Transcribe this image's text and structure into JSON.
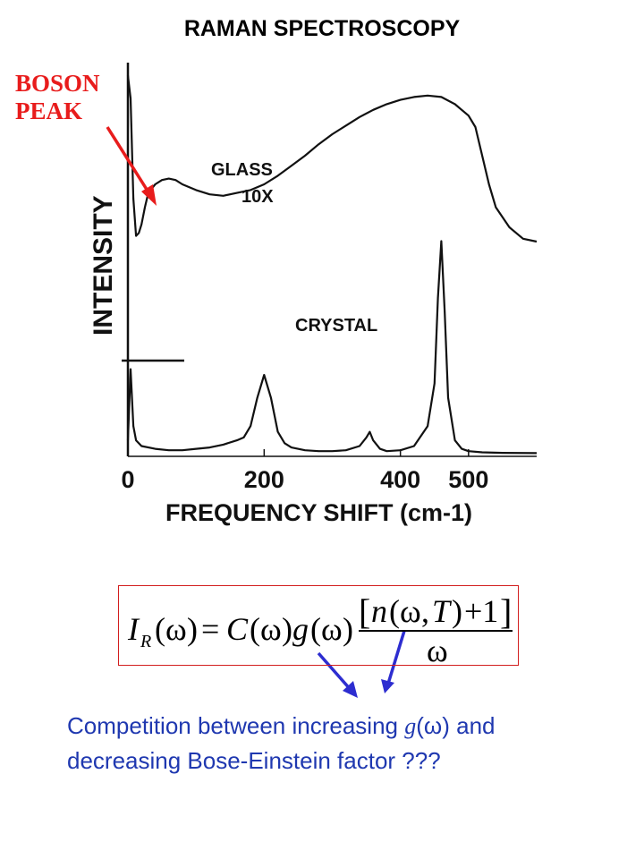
{
  "slide": {
    "title": "RAMAN SPECTROSCOPY",
    "annotation_line1": "BOSON",
    "annotation_line2": "PEAK"
  },
  "chart_data": {
    "type": "line",
    "xlabel": "FREQUENCY SHIFT (cm-1)",
    "ylabel": "INTENSITY",
    "xticks": [
      "0",
      "200",
      "400",
      "500"
    ],
    "xlim": [
      0,
      600
    ],
    "ylim": [
      0,
      1
    ],
    "grid": false,
    "series": [
      {
        "name": "GLASS 10X",
        "label_line1": "GLASS",
        "label_line2": "10X",
        "x": [
          0,
          4,
          8,
          12,
          16,
          20,
          25,
          30,
          40,
          50,
          60,
          70,
          80,
          100,
          120,
          140,
          160,
          180,
          200,
          220,
          240,
          260,
          280,
          300,
          320,
          340,
          360,
          380,
          400,
          420,
          440,
          460,
          480,
          490,
          500,
          510,
          520,
          530,
          540,
          560,
          580,
          600
        ],
        "y": [
          0.98,
          0.9,
          0.55,
          0.42,
          0.43,
          0.46,
          0.52,
          0.57,
          0.6,
          0.615,
          0.62,
          0.615,
          0.6,
          0.58,
          0.565,
          0.56,
          0.57,
          0.58,
          0.6,
          0.63,
          0.665,
          0.7,
          0.74,
          0.775,
          0.805,
          0.835,
          0.86,
          0.88,
          0.895,
          0.905,
          0.91,
          0.905,
          0.88,
          0.86,
          0.84,
          0.8,
          0.7,
          0.6,
          0.52,
          0.45,
          0.41,
          0.4
        ]
      },
      {
        "name": "CRYSTAL",
        "x": [
          0,
          4,
          8,
          12,
          20,
          40,
          60,
          80,
          100,
          120,
          140,
          160,
          170,
          180,
          190,
          200,
          210,
          220,
          230,
          240,
          260,
          280,
          300,
          320,
          340,
          350,
          355,
          360,
          370,
          380,
          400,
          420,
          440,
          450,
          455,
          460,
          465,
          470,
          480,
          490,
          500,
          520,
          550,
          600
        ],
        "y": [
          0.05,
          0.3,
          0.1,
          0.05,
          0.03,
          0.02,
          0.015,
          0.015,
          0.02,
          0.025,
          0.035,
          0.05,
          0.06,
          0.1,
          0.2,
          0.28,
          0.2,
          0.08,
          0.04,
          0.025,
          0.015,
          0.012,
          0.012,
          0.015,
          0.03,
          0.06,
          0.08,
          0.05,
          0.02,
          0.012,
          0.015,
          0.03,
          0.1,
          0.25,
          0.55,
          0.75,
          0.5,
          0.2,
          0.05,
          0.02,
          0.012,
          0.008,
          0.006,
          0.005
        ]
      }
    ]
  },
  "formula": {
    "lhs": "I",
    "lhs_sub": "R",
    "omega": "ω",
    "C": "C",
    "g": "g",
    "n": "n",
    "T": "T",
    "plus_one": "+1"
  },
  "caption": {
    "line1_pre": "Competition between increasing",
    "line1_g": "g",
    "line1_omega": "ω",
    "line1_post": "and",
    "line2": "decreasing Bose-Einstein factor ???"
  },
  "colors": {
    "annotation": "#e81c1c",
    "caption": "#1f38b0",
    "arrows": "#2d2dd0",
    "box": "#d21e1e"
  }
}
